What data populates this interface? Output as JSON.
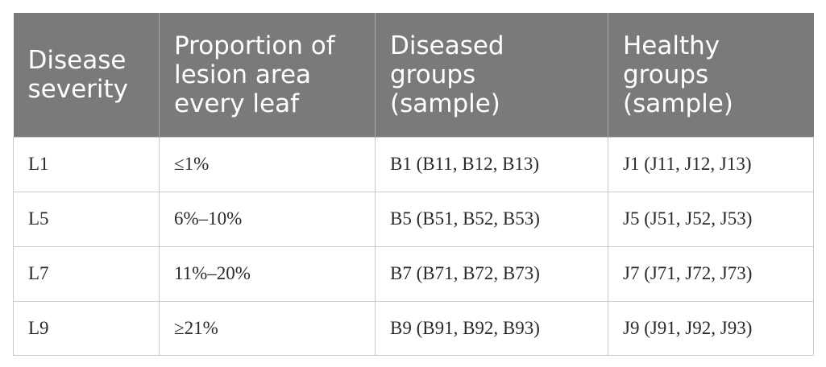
{
  "table": {
    "headers": [
      "Disease\nseverity",
      "Proportion of\nlesion area\nevery leaf",
      "Diseased\ngroups\n(sample)",
      "Healthy\ngroups\n(sample)"
    ],
    "rows": [
      [
        "L1",
        "≤1%",
        "B1 (B11, B12, B13)",
        "J1 (J11, J12, J13)"
      ],
      [
        "L5",
        "6%–10%",
        "B5 (B51, B52, B53)",
        "J5 (J51, J52, J53)"
      ],
      [
        "L7",
        "11%–20%",
        "B7 (B71, B72, B73)",
        "J7 (J71, J72, J73)"
      ],
      [
        "L9",
        "≥21%",
        "B9 (B91, B92, B93)",
        "J9 (J91, J92, J93)"
      ]
    ]
  }
}
